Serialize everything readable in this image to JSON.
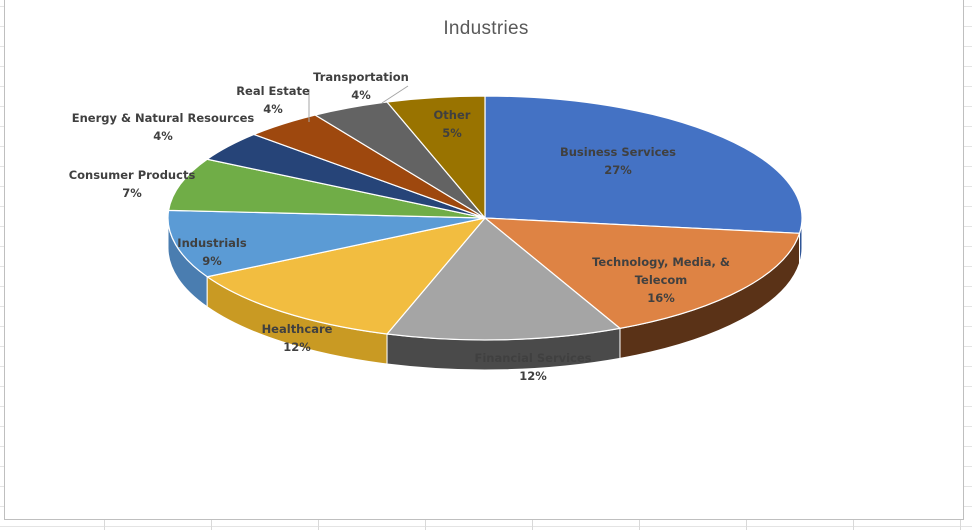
{
  "chart_data": {
    "type": "pie",
    "title": "Industries",
    "style": "3d-pie",
    "slices": [
      {
        "label": "Business Services",
        "value": 27,
        "display": "27%",
        "color": "#4472C4",
        "side_color": "#2F5597",
        "label_color": "#404040"
      },
      {
        "label": "Technology, Media, & Telecom",
        "display_lines": [
          "Technology, Media, &",
          "Telecom"
        ],
        "value": 16,
        "display": "16%",
        "color": "#DE8344",
        "side_color": "#5A3217",
        "label_color": "#404040"
      },
      {
        "label": "Financial Services",
        "value": 12,
        "display": "12%",
        "color": "#A5A5A5",
        "side_color": "#4A4A4A",
        "label_color": "#404040"
      },
      {
        "label": "Healthcare",
        "value": 12,
        "display": "12%",
        "color": "#F2BD40",
        "side_color": "#C99A23",
        "label_color": "#404040"
      },
      {
        "label": "Industrials",
        "value": 9,
        "display": "9%",
        "color": "#5B9BD5",
        "side_color": "#4A7DB0",
        "label_color": "#404040"
      },
      {
        "label": "Consumer Products",
        "value": 7,
        "display": "7%",
        "color": "#70AD47",
        "side_color": "#4E7A31",
        "label_color": "#404040"
      },
      {
        "label": "Energy & Natural Resources",
        "value": 4,
        "display": "4%",
        "color": "#264478",
        "side_color": "#1A3055",
        "label_color": "#404040"
      },
      {
        "label": "Real Estate",
        "value": 4,
        "display": "4%",
        "color": "#9E480E",
        "side_color": "#6E320A",
        "label_color": "#404040"
      },
      {
        "label": "Transportation",
        "value": 4,
        "display": "4%",
        "color": "#636363",
        "side_color": "#444444",
        "label_color": "#404040"
      },
      {
        "label": "Other",
        "value": 5,
        "display": "5%",
        "color": "#997300",
        "side_color": "#6B5000",
        "label_color": "#404040"
      }
    ]
  }
}
